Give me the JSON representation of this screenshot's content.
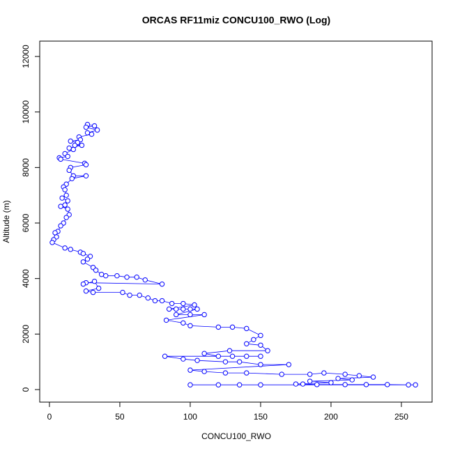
{
  "chart_data": {
    "type": "line",
    "title": "ORCAS RF11miz CONCU100_RWO (Log)",
    "x_label": "CONCU100_RWO",
    "y_label": "Altitude (m)",
    "xlim": [
      -6.9,
      271.8
    ],
    "ylim": [
      -452,
      12553
    ],
    "xticks": [
      0,
      50,
      100,
      150,
      200,
      250
    ],
    "yticks": [
      0,
      2000,
      4000,
      6000,
      8000,
      10000,
      12000
    ],
    "marker": "circle",
    "series": [
      {
        "color": "#0000ff",
        "x": [
          27,
          32,
          26,
          34,
          27,
          30,
          21,
          22,
          15,
          20,
          18,
          23,
          14,
          17,
          11,
          13,
          7,
          8,
          25,
          26,
          15,
          14,
          17,
          26,
          16,
          12,
          10,
          11,
          12,
          9,
          13,
          11,
          8,
          13,
          14,
          12,
          10,
          8,
          6,
          4,
          5,
          3,
          2,
          11,
          15,
          22,
          24,
          29,
          27,
          24,
          31,
          33,
          37,
          40,
          48,
          55,
          62,
          68,
          80,
          26,
          24,
          32,
          35,
          26,
          31,
          52,
          57,
          64,
          70,
          75,
          80,
          87,
          95,
          103,
          85,
          90,
          95,
          100,
          105,
          90,
          100,
          110,
          83,
          95,
          100,
          120,
          130,
          140,
          150,
          145,
          140,
          150,
          155,
          128,
          110,
          120,
          130,
          140,
          150,
          82,
          95,
          105,
          125,
          135,
          150,
          170,
          100,
          110,
          125,
          140,
          165,
          185,
          195,
          210,
          220,
          230,
          205,
          215,
          185,
          200,
          175,
          180,
          190,
          210,
          225,
          240,
          255,
          260,
          100,
          150,
          135,
          120
        ],
        "values": [
          9550,
          9500,
          9450,
          9350,
          9250,
          9200,
          9100,
          9000,
          8950,
          8900,
          8800,
          8800,
          8700,
          8650,
          8500,
          8400,
          8350,
          8300,
          8150,
          8100,
          8000,
          7900,
          7700,
          7700,
          7600,
          7400,
          7300,
          7200,
          7000,
          6900,
          6800,
          6650,
          6600,
          6500,
          6300,
          6200,
          6000,
          5900,
          5700,
          5650,
          5500,
          5400,
          5300,
          5100,
          5050,
          4950,
          4900,
          4800,
          4700,
          4600,
          4400,
          4300,
          4150,
          4100,
          4100,
          4050,
          4050,
          3950,
          3800,
          3850,
          3800,
          3900,
          3650,
          3550,
          3500,
          3500,
          3400,
          3400,
          3300,
          3200,
          3200,
          3100,
          3100,
          3050,
          2900,
          2900,
          2900,
          2900,
          2900,
          2700,
          2700,
          2700,
          2500,
          2400,
          2300,
          2250,
          2250,
          2200,
          1950,
          1800,
          1650,
          1600,
          1400,
          1400,
          1300,
          1200,
          1200,
          1200,
          1200,
          1200,
          1100,
          1050,
          1000,
          1000,
          900,
          900,
          700,
          650,
          600,
          600,
          550,
          550,
          600,
          550,
          500,
          450,
          400,
          350,
          300,
          250,
          200,
          200,
          180,
          180,
          180,
          180,
          170,
          170,
          170,
          170,
          170,
          170
        ]
      }
    ]
  }
}
